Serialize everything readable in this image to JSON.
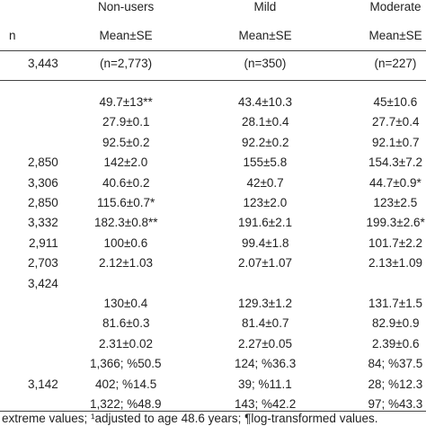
{
  "table": {
    "groups": [
      "Non-users",
      "Mild",
      "Moderate"
    ],
    "n_label": "n",
    "stat_labels": [
      "Mean±SE",
      "Mean±SE",
      "Mean±SE"
    ],
    "count_row": {
      "n": "3,443",
      "cells": [
        "(n=2,773)",
        "(n=350)",
        "(n=227)"
      ]
    },
    "rows": [
      {
        "cells": [
          "49.7±13**",
          "43.4±10.3",
          "45±10.6"
        ]
      },
      {
        "cells": [
          "27.9±0.1",
          "28.1±0.4",
          "27.7±0.4"
        ]
      },
      {
        "cells": [
          "92.5±0.2",
          "92.2±0.2",
          "92.1±0.7"
        ]
      },
      {
        "n": "2,850",
        "cells": [
          "142±2.0",
          "155±5.8",
          "154.3±7.2"
        ]
      },
      {
        "n": "3,306",
        "cells": [
          "40.6±0.2",
          "42±0.7",
          "44.7±0.9*"
        ]
      },
      {
        "n": "2,850",
        "cells": [
          "115.6±0.7*",
          "123±2.0",
          "123±2.5"
        ]
      },
      {
        "n": "3,332",
        "cells": [
          "182.3±0.8**",
          "191.6±2.1",
          "199.3±2.6*"
        ]
      },
      {
        "n": "2,911",
        "cells": [
          "100±0.6",
          "99.4±1.8",
          "101.7±2.2"
        ]
      },
      {
        "n": "2,703",
        "cells": [
          "2.12±1.03",
          "2.07±1.07",
          "2.13±1.09"
        ]
      },
      {
        "n": "3,424"
      },
      {
        "cells": [
          "130±0.4",
          "129.3±1.2",
          "131.7±1.5"
        ]
      },
      {
        "cells": [
          "81.6±0.3",
          "81.4±0.7",
          "82.9±0.9"
        ]
      },
      {
        "cells": [
          "2.31±0.02",
          "2.27±0.05",
          "2.39±0.6"
        ]
      },
      {
        "cells": [
          "1,366; %50.5",
          "124; %36.3",
          "84; %37.5"
        ]
      },
      {
        "n": "3,142",
        "cells": [
          "402; %14.5",
          "39; %11.1",
          "28; %12.3"
        ]
      },
      {
        "cells": [
          "1,322; %48.9",
          "143; %42.2",
          "97; %43.3"
        ]
      }
    ],
    "footnote": "extreme values; ¹adjusted to age 48.6 years; ¶log-transformed values."
  }
}
